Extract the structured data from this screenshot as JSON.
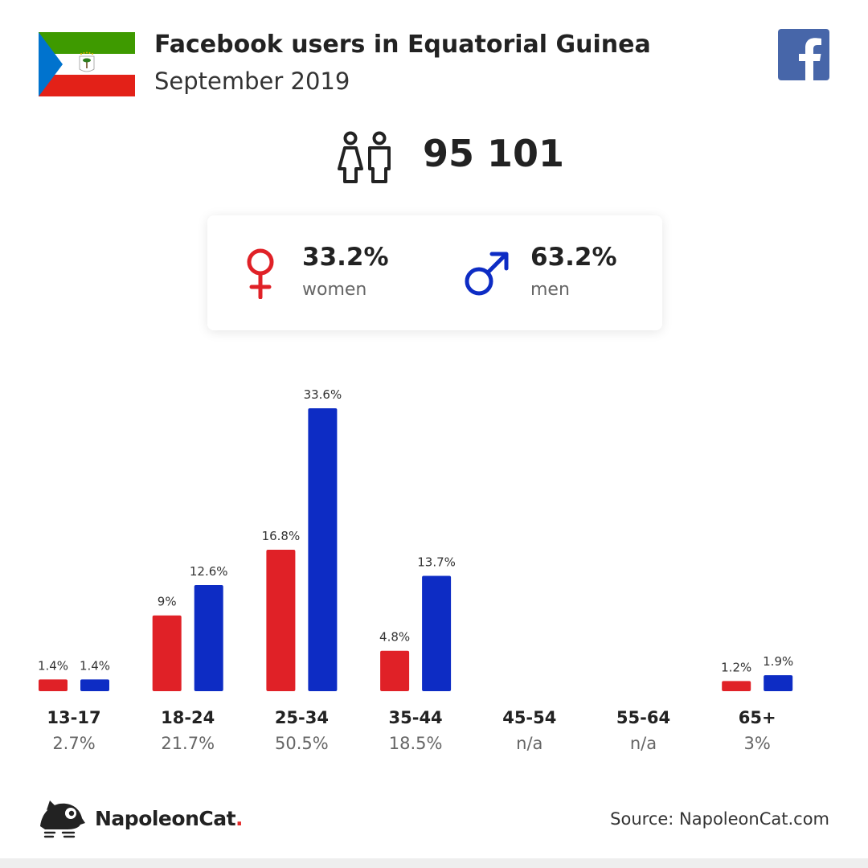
{
  "header": {
    "title": "Facebook users in Equatorial Guinea",
    "subtitle": "September 2019"
  },
  "total": {
    "users": "95 101"
  },
  "gender": {
    "women": {
      "percent": "33.2%",
      "label": "women"
    },
    "men": {
      "percent": "63.2%",
      "label": "men"
    }
  },
  "colors": {
    "women": "#e02127",
    "men": "#0d2cc4",
    "facebook": "#4766a9",
    "flag_green": "#3e9a00",
    "flag_red": "#e32118",
    "flag_blue": "#0073ce"
  },
  "icons": {
    "flag": "equatorial-guinea-flag-icon",
    "facebook": "facebook-icon",
    "people": "people-icon",
    "female": "female-icon",
    "male": "male-icon",
    "logo": "napoleoncat-logo-icon"
  },
  "chart_data": {
    "type": "bar",
    "categories": [
      "13-17",
      "18-24",
      "25-34",
      "35-44",
      "45-54",
      "55-64",
      "65+"
    ],
    "category_totals": [
      "2.7%",
      "21.7%",
      "50.5%",
      "18.5%",
      "n/a",
      "n/a",
      "3%"
    ],
    "series": [
      {
        "name": "women",
        "values": [
          1.4,
          9,
          16.8,
          4.8,
          null,
          null,
          1.2
        ],
        "labels": [
          "1.4%",
          "9%",
          "16.8%",
          "4.8%",
          "",
          "",
          "1.2%"
        ]
      },
      {
        "name": "men",
        "values": [
          1.4,
          12.6,
          33.6,
          13.7,
          null,
          null,
          1.9
        ],
        "labels": [
          "1.4%",
          "12.6%",
          "33.6%",
          "13.7%",
          "",
          "",
          "1.9%"
        ]
      }
    ],
    "ylim": [
      0,
      33.6
    ],
    "grid": false,
    "legend": "none"
  },
  "footer": {
    "brand": "NapoleonCat",
    "brand_dot": ".",
    "source": "Source: NapoleonCat.com"
  }
}
